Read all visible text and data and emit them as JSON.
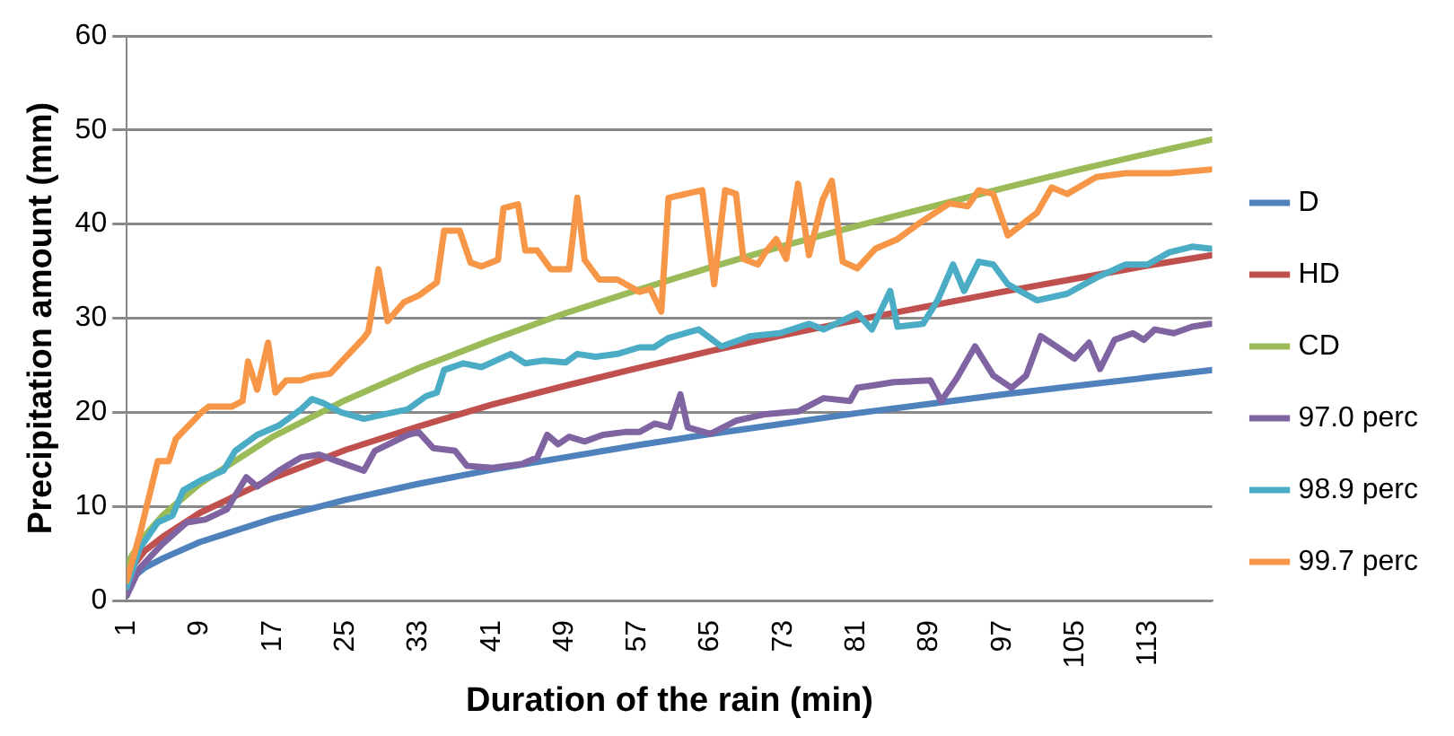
{
  "chart_data": {
    "type": "line",
    "xlabel": "Duration of the rain (min)",
    "ylabel": "Precipitation amount (mm)",
    "xlim": [
      1,
      120
    ],
    "xticks": [
      1,
      9,
      17,
      25,
      33,
      41,
      49,
      57,
      65,
      73,
      81,
      89,
      97,
      105,
      113
    ],
    "ylim": [
      0,
      60
    ],
    "yticks": [
      0,
      10,
      20,
      30,
      40,
      50,
      60
    ],
    "grid": "y",
    "legend": "right",
    "marker": "none",
    "line_style": "solid",
    "series": [
      {
        "name": "D",
        "color": "#4f81bd",
        "x": [
          1,
          3,
          5,
          9,
          17,
          25,
          33,
          41,
          49,
          57,
          65,
          73,
          81,
          89,
          97,
          105,
          113,
          120
        ],
        "values": [
          1.9,
          3.5,
          4.5,
          6.2,
          8.7,
          10.7,
          12.4,
          13.9,
          15.2,
          16.5,
          17.7,
          18.8,
          19.9,
          20.9,
          21.9,
          22.8,
          23.7,
          24.5
        ]
      },
      {
        "name": "HD",
        "color": "#c0504d",
        "x": [
          1,
          3,
          5,
          9,
          17,
          25,
          33,
          41,
          49,
          57,
          65,
          73,
          81,
          89,
          97,
          105,
          113,
          120
        ],
        "values": [
          2.8,
          5.3,
          6.8,
          9.3,
          13.0,
          16.0,
          18.5,
          20.8,
          22.8,
          24.7,
          26.5,
          28.2,
          29.8,
          31.3,
          32.8,
          34.2,
          35.6,
          36.7
        ]
      },
      {
        "name": "CD",
        "color": "#9bbb59",
        "x": [
          1,
          3,
          5,
          9,
          17,
          25,
          33,
          41,
          49,
          57,
          65,
          73,
          81,
          89,
          97,
          105,
          113,
          120
        ],
        "values": [
          3.9,
          6.9,
          9.1,
          12.4,
          17.4,
          21.3,
          24.7,
          27.7,
          30.5,
          33.0,
          35.4,
          37.7,
          39.8,
          41.8,
          43.8,
          45.7,
          47.5,
          49.0
        ]
      },
      {
        "name": "97.0 perc",
        "color": "#8064a2",
        "x": [
          1,
          2.4,
          4.8,
          7.6,
          9.6,
          12,
          14.1,
          15.3,
          17.7,
          20.1,
          22.1,
          24.1,
          27,
          28.2,
          31.8,
          33,
          34.6,
          37,
          38.3,
          41.1,
          44.3,
          46,
          47.1,
          48.3,
          49.5,
          51.2,
          53.2,
          55.6,
          57.2,
          58.9,
          60.5,
          61.7,
          62.5,
          65,
          67.8,
          71,
          74.6,
          77.4,
          80.3,
          81.1,
          83.1,
          85.1,
          89.1,
          90.3,
          92,
          94,
          96,
          98,
          99.6,
          101.2,
          102.9,
          104.9,
          106.5,
          107.7,
          109.3,
          111.3,
          112.5,
          113.7,
          115.8,
          117.8,
          119.8
        ],
        "values": [
          0.5,
          3.4,
          5.9,
          8.3,
          8.6,
          9.7,
          13.1,
          12.1,
          13.8,
          15.2,
          15.5,
          14.8,
          13.8,
          15.9,
          17.6,
          17.9,
          16.2,
          15.9,
          14.3,
          14.1,
          14.5,
          15.2,
          17.6,
          16.6,
          17.4,
          16.9,
          17.6,
          17.9,
          17.9,
          18.8,
          18.4,
          21.9,
          18.4,
          17.7,
          19.1,
          19.8,
          20.1,
          21.5,
          21.2,
          22.6,
          22.9,
          23.2,
          23.4,
          21.2,
          23.6,
          27.0,
          23.9,
          22.6,
          23.9,
          28.1,
          27.0,
          25.7,
          27.4,
          24.6,
          27.7,
          28.4,
          27.7,
          28.8,
          28.4,
          29.1,
          29.4
        ]
      },
      {
        "name": "98.9 perc",
        "color": "#4bacc6",
        "x": [
          1,
          2.4,
          4.4,
          6,
          7.2,
          9.2,
          11.6,
          12.9,
          15.3,
          17.7,
          20.1,
          21.3,
          22.5,
          24.5,
          27,
          29.8,
          31.8,
          33.8,
          35,
          35.8,
          37.9,
          39.9,
          41.5,
          43.1,
          44.7,
          46.7,
          49.1,
          50.4,
          52.4,
          54.8,
          57.2,
          58.8,
          60.4,
          63.7,
          66.2,
          69.4,
          72.6,
          75.8,
          77.4,
          81.1,
          82.7,
          84.7,
          85.5,
          88.3,
          89.9,
          91.6,
          92.8,
          94.4,
          96,
          97.6,
          100.8,
          104.1,
          107.3,
          110.5,
          112.9,
          115.3,
          117.8,
          119.8
        ],
        "values": [
          1.4,
          5.5,
          8.3,
          9.0,
          11.7,
          12.8,
          13.8,
          15.9,
          17.6,
          18.6,
          20.3,
          21.4,
          21.0,
          20.0,
          19.3,
          19.9,
          20.3,
          21.7,
          22.1,
          24.5,
          25.2,
          24.8,
          25.5,
          26.2,
          25.2,
          25.5,
          25.3,
          26.2,
          25.9,
          26.2,
          26.9,
          26.9,
          27.9,
          28.8,
          27.0,
          28.1,
          28.4,
          29.4,
          28.8,
          30.5,
          28.8,
          32.9,
          29.1,
          29.4,
          31.9,
          35.7,
          32.9,
          36.0,
          35.7,
          33.6,
          31.9,
          32.6,
          34.3,
          35.7,
          35.7,
          37.0,
          37.6,
          37.4
        ]
      },
      {
        "name": "99.7 perc",
        "color": "#f79646",
        "x": [
          1,
          2.4,
          4.4,
          5.6,
          6.4,
          9.2,
          10,
          12.5,
          13.7,
          14.3,
          15.3,
          16.5,
          17.3,
          18.5,
          20.1,
          21.3,
          23.3,
          27,
          27.5,
          28.6,
          29.6,
          31.4,
          33,
          35,
          35.8,
          37.5,
          38.7,
          39.9,
          41.7,
          42.3,
          43.9,
          44.7,
          46,
          47.5,
          49.5,
          50.4,
          51.2,
          52.8,
          54.8,
          57.2,
          58.4,
          59.6,
          60.4,
          64.1,
          65.4,
          66.6,
          67.8,
          68.6,
          70.2,
          71,
          72.2,
          73.3,
          74.6,
          75.8,
          77.3,
          78.3,
          79.5,
          81.1,
          83.1,
          85.5,
          87.9,
          91.2,
          93.2,
          94.4,
          96,
          97.6,
          100.8,
          102.4,
          104.1,
          107.3,
          110.5,
          115.3,
          119.8
        ],
        "values": [
          2.1,
          6.9,
          14.8,
          14.8,
          17.2,
          20.0,
          20.6,
          20.6,
          21.2,
          25.4,
          22.4,
          27.4,
          22.1,
          23.4,
          23.4,
          23.8,
          24.1,
          27.9,
          28.6,
          35.2,
          29.7,
          31.7,
          32.4,
          33.8,
          39.3,
          39.3,
          35.9,
          35.5,
          36.2,
          41.7,
          42.1,
          37.2,
          37.2,
          35.2,
          35.2,
          42.8,
          36.2,
          34.1,
          34.1,
          32.8,
          33.1,
          30.7,
          42.8,
          43.6,
          33.6,
          43.6,
          43.2,
          36.3,
          35.7,
          37.0,
          38.4,
          36.3,
          44.3,
          36.7,
          42.6,
          44.6,
          36.0,
          35.3,
          37.4,
          38.4,
          40.1,
          42.2,
          41.9,
          43.6,
          43.2,
          38.8,
          41.2,
          43.9,
          43.2,
          45.0,
          45.4,
          45.4,
          45.8
        ]
      }
    ]
  }
}
